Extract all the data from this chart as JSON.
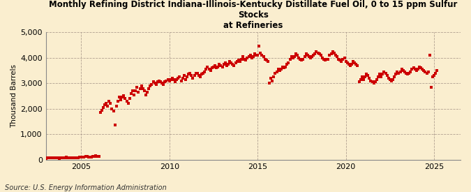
{
  "title": "Monthly Refining District Indiana-Illinois-Kentucky Distillate Fuel Oil, 0 to 15 ppm Sulfur Stocks\nat Refineries",
  "ylabel": "Thousand Barrels",
  "source": "Source: U.S. Energy Information Administration",
  "bg_color": "#faeecf",
  "marker_color": "#cc0000",
  "xlim": [
    2003.0,
    2026.5
  ],
  "ylim": [
    0,
    5000
  ],
  "yticks": [
    0,
    1000,
    2000,
    3000,
    4000,
    5000
  ],
  "ytick_labels": [
    "0",
    "1,000",
    "2,000",
    "3,000",
    "4,000",
    "5,000"
  ],
  "xticks": [
    2005,
    2010,
    2015,
    2020,
    2025
  ],
  "data": {
    "dates": [
      2003.0,
      2003.083,
      2003.167,
      2003.25,
      2003.333,
      2003.417,
      2003.5,
      2003.583,
      2003.667,
      2003.75,
      2003.833,
      2003.917,
      2004.0,
      2004.083,
      2004.167,
      2004.25,
      2004.333,
      2004.417,
      2004.5,
      2004.583,
      2004.667,
      2004.75,
      2004.833,
      2004.917,
      2005.0,
      2005.083,
      2005.167,
      2005.25,
      2005.333,
      2005.417,
      2005.5,
      2005.583,
      2005.667,
      2005.75,
      2005.833,
      2005.917,
      2006.0,
      2006.083,
      2006.167,
      2006.25,
      2006.333,
      2006.417,
      2006.5,
      2006.583,
      2006.667,
      2006.75,
      2006.833,
      2006.917,
      2007.0,
      2007.083,
      2007.167,
      2007.25,
      2007.333,
      2007.417,
      2007.5,
      2007.583,
      2007.667,
      2007.75,
      2007.833,
      2007.917,
      2008.0,
      2008.083,
      2008.167,
      2008.25,
      2008.333,
      2008.417,
      2008.5,
      2008.583,
      2008.667,
      2008.75,
      2008.833,
      2008.917,
      2009.0,
      2009.083,
      2009.167,
      2009.25,
      2009.333,
      2009.417,
      2009.5,
      2009.583,
      2009.667,
      2009.75,
      2009.833,
      2009.917,
      2010.0,
      2010.083,
      2010.167,
      2010.25,
      2010.333,
      2010.417,
      2010.5,
      2010.583,
      2010.667,
      2010.75,
      2010.833,
      2010.917,
      2011.0,
      2011.083,
      2011.167,
      2011.25,
      2011.333,
      2011.417,
      2011.5,
      2011.583,
      2011.667,
      2011.75,
      2011.833,
      2011.917,
      2012.0,
      2012.083,
      2012.167,
      2012.25,
      2012.333,
      2012.417,
      2012.5,
      2012.583,
      2012.667,
      2012.75,
      2012.833,
      2012.917,
      2013.0,
      2013.083,
      2013.167,
      2013.25,
      2013.333,
      2013.417,
      2013.5,
      2013.583,
      2013.667,
      2013.75,
      2013.833,
      2013.917,
      2014.0,
      2014.083,
      2014.167,
      2014.25,
      2014.333,
      2014.417,
      2014.5,
      2014.583,
      2014.667,
      2014.75,
      2014.833,
      2014.917,
      2015.0,
      2015.083,
      2015.167,
      2015.25,
      2015.333,
      2015.417,
      2015.5,
      2015.583,
      2015.667,
      2015.75,
      2015.833,
      2015.917,
      2016.0,
      2016.083,
      2016.167,
      2016.25,
      2016.333,
      2016.417,
      2016.5,
      2016.583,
      2016.667,
      2016.75,
      2016.833,
      2016.917,
      2017.0,
      2017.083,
      2017.167,
      2017.25,
      2017.333,
      2017.417,
      2017.5,
      2017.583,
      2017.667,
      2017.75,
      2017.833,
      2017.917,
      2018.0,
      2018.083,
      2018.167,
      2018.25,
      2018.333,
      2018.417,
      2018.5,
      2018.583,
      2018.667,
      2018.75,
      2018.833,
      2018.917,
      2019.0,
      2019.083,
      2019.167,
      2019.25,
      2019.333,
      2019.417,
      2019.5,
      2019.583,
      2019.667,
      2019.75,
      2019.833,
      2019.917,
      2020.0,
      2020.083,
      2020.167,
      2020.25,
      2020.333,
      2020.417,
      2020.5,
      2020.583,
      2020.667,
      2020.75,
      2020.833,
      2020.917,
      2021.0,
      2021.083,
      2021.167,
      2021.25,
      2021.333,
      2021.417,
      2021.5,
      2021.583,
      2021.667,
      2021.75,
      2021.833,
      2021.917,
      2022.0,
      2022.083,
      2022.167,
      2022.25,
      2022.333,
      2022.417,
      2022.5,
      2022.583,
      2022.667,
      2022.75,
      2022.833,
      2022.917,
      2023.0,
      2023.083,
      2023.167,
      2023.25,
      2023.333,
      2023.417,
      2023.5,
      2023.583,
      2023.667,
      2023.75,
      2023.833,
      2023.917,
      2024.0,
      2024.083,
      2024.167,
      2024.25,
      2024.333,
      2024.417,
      2024.5,
      2024.583,
      2024.667,
      2024.75,
      2024.833,
      2024.917,
      2025.0,
      2025.083,
      2025.167
    ],
    "values": [
      55,
      60,
      65,
      70,
      75,
      80,
      72,
      68,
      62,
      58,
      70,
      75,
      80,
      85,
      88,
      82,
      78,
      72,
      68,
      65,
      70,
      78,
      82,
      90,
      95,
      100,
      110,
      120,
      115,
      108,
      100,
      105,
      130,
      120,
      150,
      120,
      140,
      1850,
      1950,
      2050,
      2150,
      2200,
      2100,
      2300,
      2200,
      2000,
      1900,
      1350,
      2100,
      2300,
      2450,
      2350,
      2450,
      2500,
      2400,
      2300,
      2200,
      2400,
      2600,
      2700,
      2550,
      2700,
      2850,
      2650,
      2800,
      2900,
      2800,
      2700,
      2550,
      2650,
      2800,
      2900,
      2950,
      3050,
      3000,
      2950,
      3050,
      3100,
      3050,
      3000,
      2950,
      3050,
      3100,
      3150,
      3100,
      3150,
      3200,
      3150,
      3050,
      3150,
      3200,
      3250,
      3100,
      3200,
      3300,
      3150,
      3250,
      3350,
      3400,
      3300,
      3200,
      3300,
      3400,
      3400,
      3300,
      3250,
      3350,
      3400,
      3450,
      3550,
      3650,
      3550,
      3500,
      3600,
      3650,
      3700,
      3600,
      3650,
      3750,
      3700,
      3650,
      3750,
      3800,
      3700,
      3750,
      3850,
      3800,
      3750,
      3700,
      3800,
      3850,
      3900,
      3850,
      3950,
      4050,
      3950,
      3900,
      4000,
      4050,
      4100,
      4000,
      4050,
      4150,
      4100,
      4100,
      4450,
      4200,
      4100,
      4050,
      3950,
      3900,
      3850,
      3000,
      3200,
      3100,
      3250,
      3400,
      3450,
      3550,
      3500,
      3550,
      3650,
      3600,
      3650,
      3750,
      3800,
      3950,
      4050,
      4000,
      4050,
      4150,
      4100,
      4000,
      3950,
      3900,
      3950,
      4050,
      4150,
      4100,
      4050,
      4000,
      4050,
      4100,
      4150,
      4250,
      4200,
      4150,
      4100,
      4000,
      3950,
      3900,
      3950,
      3950,
      4100,
      4150,
      4250,
      4200,
      4100,
      4050,
      3950,
      3900,
      3850,
      3950,
      4000,
      3850,
      3800,
      3750,
      3700,
      3750,
      3850,
      3800,
      3750,
      3700,
      3050,
      3150,
      3250,
      3150,
      3250,
      3350,
      3300,
      3200,
      3100,
      3050,
      3000,
      3050,
      3150,
      3250,
      3350,
      3250,
      3350,
      3450,
      3400,
      3300,
      3200,
      3150,
      3100,
      3150,
      3250,
      3350,
      3450,
      3400,
      3450,
      3550,
      3500,
      3450,
      3400,
      3350,
      3400,
      3450,
      3550,
      3600,
      3550,
      3500,
      3550,
      3650,
      3600,
      3550,
      3500,
      3450,
      3400,
      3450,
      4100,
      2850,
      3250,
      3300,
      3400,
      3500
    ]
  }
}
